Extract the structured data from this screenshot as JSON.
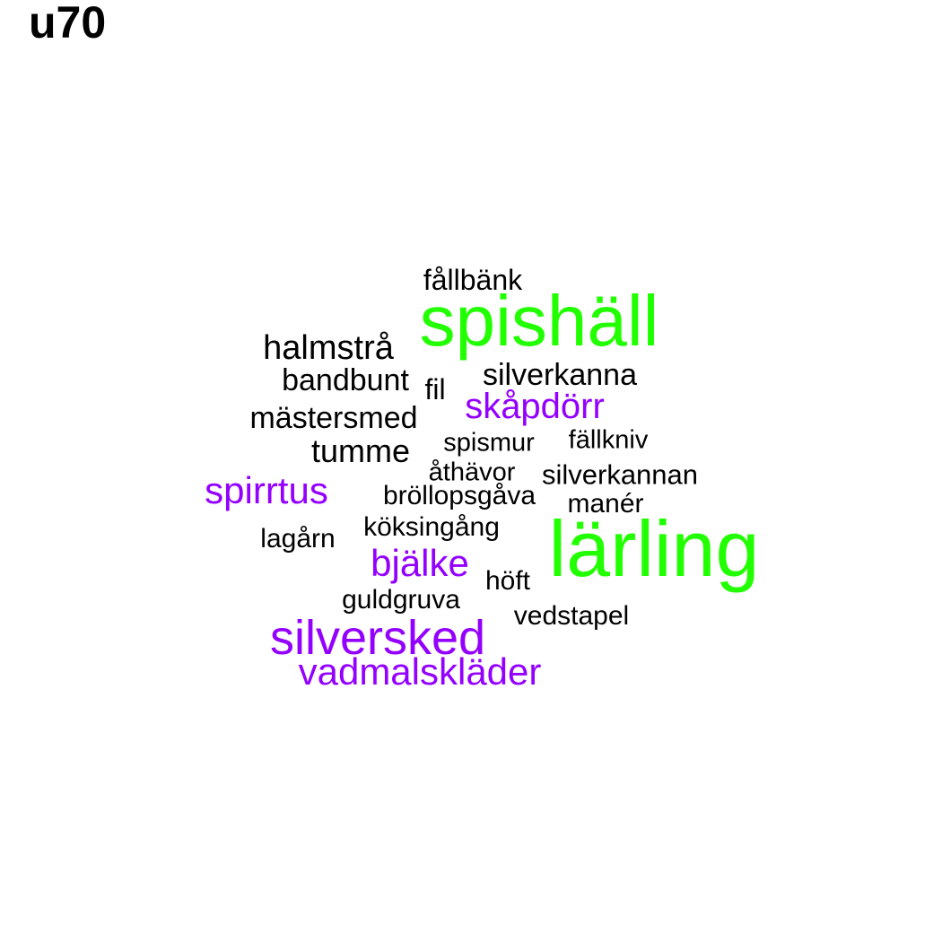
{
  "title": "u70",
  "colors": {
    "black": "#000000",
    "purple": "#9400ff",
    "green": "#22ff00"
  },
  "words": [
    {
      "text": "fållbänk",
      "color": "#000000"
    },
    {
      "text": "spishäll",
      "color": "#22ff00"
    },
    {
      "text": "halmstrå",
      "color": "#000000"
    },
    {
      "text": "bandbunt",
      "color": "#000000"
    },
    {
      "text": "fil",
      "color": "#000000"
    },
    {
      "text": "silverkanna",
      "color": "#000000"
    },
    {
      "text": "skåpdörr",
      "color": "#9400ff"
    },
    {
      "text": "mästersmed",
      "color": "#000000"
    },
    {
      "text": "tumme",
      "color": "#000000"
    },
    {
      "text": "spismur",
      "color": "#000000"
    },
    {
      "text": "fällkniv",
      "color": "#000000"
    },
    {
      "text": "åthävor",
      "color": "#000000"
    },
    {
      "text": "silverkannan",
      "color": "#000000"
    },
    {
      "text": "spirrtus",
      "color": "#9400ff"
    },
    {
      "text": "bröllopsgåva",
      "color": "#000000"
    },
    {
      "text": "manér",
      "color": "#000000"
    },
    {
      "text": "köksingång",
      "color": "#000000"
    },
    {
      "text": "lagårn",
      "color": "#000000"
    },
    {
      "text": "lärling",
      "color": "#22ff00"
    },
    {
      "text": "bjälke",
      "color": "#9400ff"
    },
    {
      "text": "höft",
      "color": "#000000"
    },
    {
      "text": "guldgruva",
      "color": "#000000"
    },
    {
      "text": "vedstapel",
      "color": "#000000"
    },
    {
      "text": "silversked",
      "color": "#9400ff"
    },
    {
      "text": "vadmalskläder",
      "color": "#9400ff"
    }
  ]
}
